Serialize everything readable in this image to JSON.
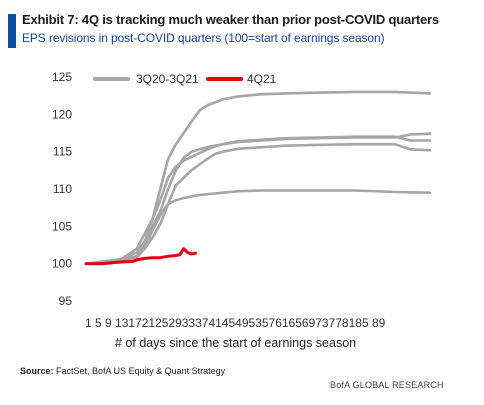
{
  "title": "Exhibit 7: 4Q is tracking much weaker than prior post-COVID quarters",
  "subtitle": "EPS revisions in post-COVID quarters (100=start of earnings season)",
  "source_label": "Source:",
  "source_text": "FactSet, BofA US Equity & Quant Strategy",
  "brand": "BofA GLOBAL RESEARCH",
  "colors": {
    "accent": "#0b4ea2",
    "gray_series": "#a6a6a6",
    "red_series": "#e3000f"
  },
  "chart_data": {
    "type": "line",
    "title": "",
    "xlabel": "# of days since the start of earnings season",
    "ylabel": "",
    "ylim": [
      95,
      125
    ],
    "xlim": [
      1,
      89
    ],
    "yticks": [
      95,
      100,
      105,
      110,
      115,
      120,
      125
    ],
    "xtick_text": "1 5 9 13172125293337414549535761656973778185 89",
    "legend": {
      "placement": "top-left",
      "entries": [
        "3Q20-3Q21",
        "4Q21"
      ]
    },
    "grid": false,
    "series": [
      {
        "group": "3Q20-3Q21",
        "color": "#a6a6a6",
        "x": [
          1,
          10,
          14,
          16,
          18,
          20,
          22,
          24,
          26,
          28,
          30,
          32,
          34,
          36,
          40,
          46,
          52,
          60,
          70,
          80,
          89
        ],
        "y": [
          100,
          100.3,
          101,
          102,
          104.5,
          106.5,
          108,
          108.5,
          108.8,
          109,
          109.2,
          109.3,
          109.4,
          109.5,
          109.7,
          109.8,
          109.8,
          109.8,
          109.8,
          109.6,
          109.5
        ]
      },
      {
        "group": "3Q20-3Q21",
        "color": "#a6a6a6",
        "x": [
          1,
          10,
          14,
          16,
          18,
          20,
          22,
          24,
          26,
          28,
          30,
          32,
          34,
          36,
          40,
          46,
          52,
          60,
          70,
          80,
          89
        ],
        "y": [
          100,
          100.5,
          101.5,
          103,
          106,
          110,
          114,
          116,
          117.5,
          119,
          120.5,
          121.2,
          121.6,
          122,
          122.4,
          122.7,
          122.8,
          122.9,
          123,
          123,
          122.8
        ]
      },
      {
        "group": "3Q20-3Q21",
        "color": "#a6a6a6",
        "x": [
          1,
          10,
          14,
          16,
          18,
          20,
          22,
          24,
          26,
          28,
          30,
          32,
          34,
          36,
          40,
          46,
          52,
          60,
          70,
          80,
          84,
          89
        ],
        "y": [
          100,
          100.6,
          102,
          104,
          106,
          108.5,
          111.5,
          113,
          113.8,
          114.3,
          114.8,
          115.3,
          115.7,
          116,
          116.4,
          116.6,
          116.8,
          116.9,
          117,
          117,
          116.5,
          116.5
        ]
      },
      {
        "group": "3Q20-3Q21",
        "color": "#a6a6a6",
        "x": [
          1,
          10,
          14,
          16,
          18,
          20,
          22,
          24,
          26,
          28,
          30,
          32,
          34,
          36,
          40,
          46,
          52,
          60,
          70,
          80,
          84,
          89
        ],
        "y": [
          100,
          100.4,
          101,
          102.5,
          105,
          107,
          110,
          112.5,
          114.2,
          115,
          115.3,
          115.6,
          115.8,
          116,
          116.3,
          116.5,
          116.7,
          116.8,
          116.9,
          116.9,
          117.3,
          117.4
        ]
      },
      {
        "group": "3Q20-3Q21",
        "color": "#a6a6a6",
        "x": [
          1,
          10,
          14,
          16,
          18,
          20,
          22,
          24,
          26,
          28,
          30,
          32,
          34,
          36,
          40,
          46,
          52,
          60,
          70,
          80,
          84,
          89
        ],
        "y": [
          100,
          100.2,
          100.8,
          102,
          103.5,
          105.3,
          108,
          110.5,
          111.5,
          112.5,
          113.3,
          114,
          114.7,
          115,
          115.4,
          115.6,
          115.8,
          115.9,
          116,
          116,
          115.3,
          115.2
        ]
      },
      {
        "group": "4Q21",
        "color": "#e3000f",
        "x": [
          1,
          5,
          9,
          13,
          14,
          16,
          18,
          20,
          22,
          24,
          25,
          26,
          27,
          28,
          29
        ],
        "y": [
          100,
          100,
          100.2,
          100.3,
          100.5,
          100.7,
          100.8,
          100.8,
          101,
          101.1,
          101.2,
          102,
          101.5,
          101.3,
          101.4
        ]
      }
    ]
  }
}
